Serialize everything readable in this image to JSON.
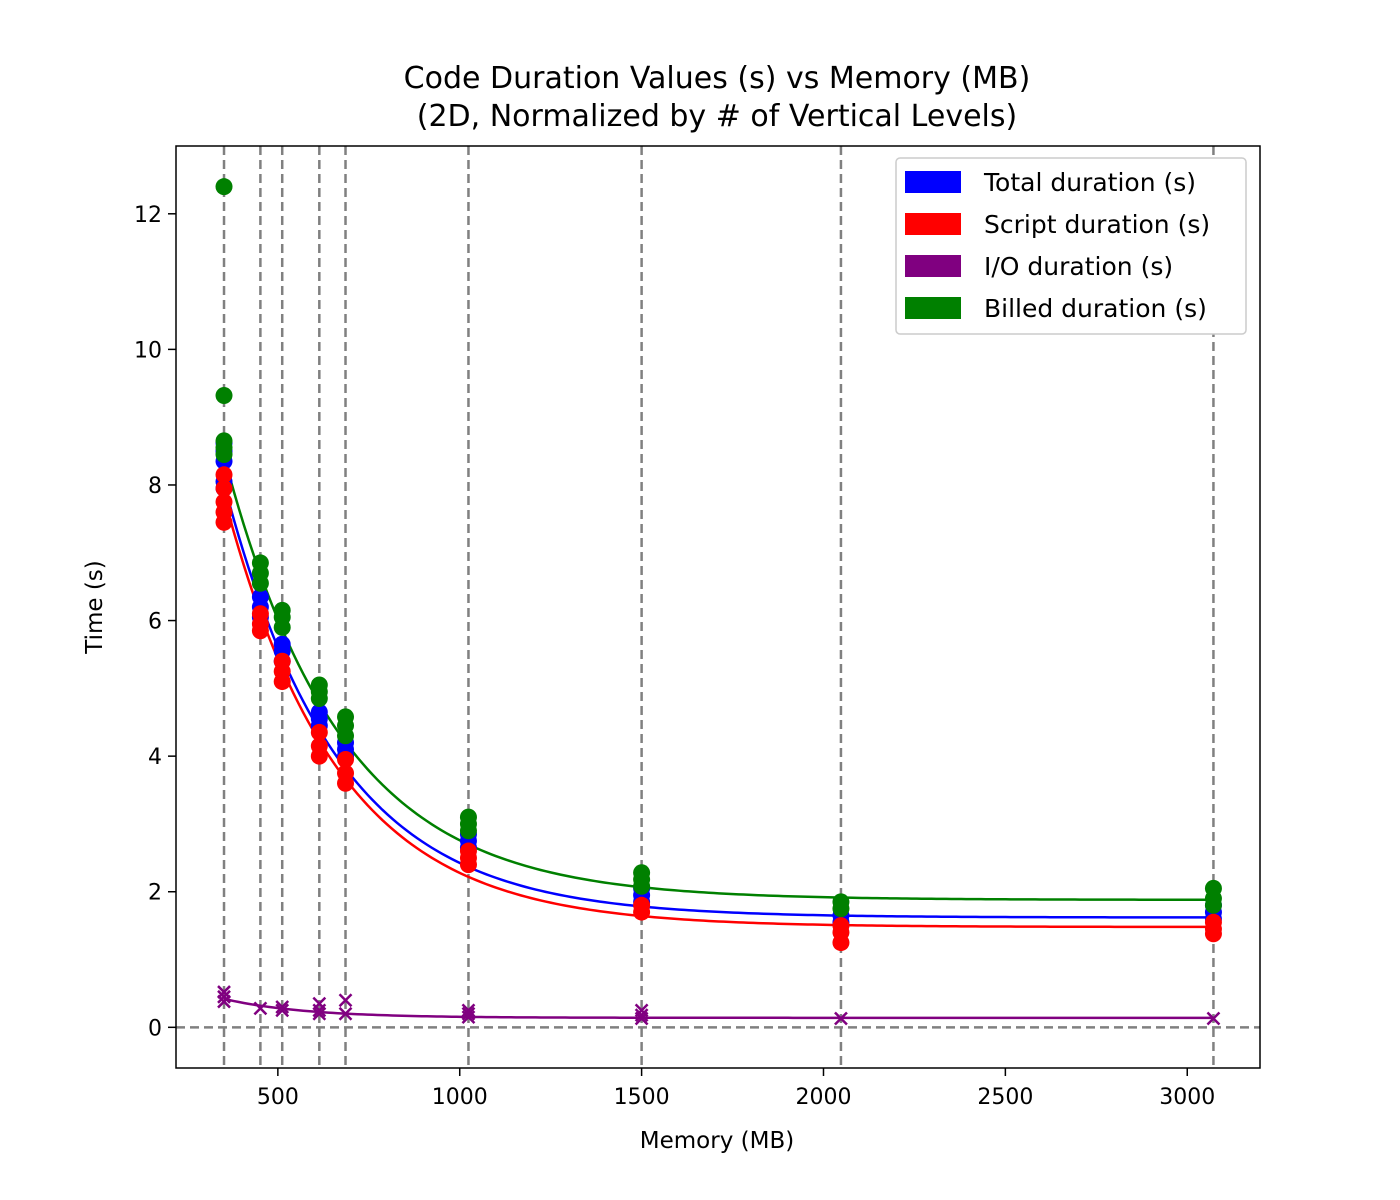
{
  "chart_data": {
    "type": "scatter",
    "title_line1": "Code Duration Values (s) vs Memory (MB)",
    "title_line2": "(2D, Normalized by # of Vertical Levels)",
    "xlabel": "Memory (MB)",
    "ylabel": "Time (s)",
    "xlim": [
      220,
      3200
    ],
    "ylim": [
      -0.6,
      13.0
    ],
    "xticks": [
      500,
      1000,
      1500,
      2000,
      2500,
      3000
    ],
    "yticks": [
      0,
      2,
      4,
      6,
      8,
      10,
      12
    ],
    "grid": false,
    "legend_position": "top-right",
    "reference_lines": {
      "vertical_x": [
        352,
        452,
        512,
        614,
        686,
        1024,
        1500,
        2048,
        3072
      ],
      "horizontal_y": [
        0
      ],
      "color": "#808080",
      "style": "dashed"
    },
    "series": [
      {
        "name": "Total duration (s)",
        "color": "#0000ff",
        "marker": "circle",
        "points": [
          [
            352,
            8.62
          ],
          [
            352,
            8.5
          ],
          [
            352,
            8.35
          ],
          [
            352,
            8.05
          ],
          [
            352,
            7.95
          ],
          [
            452,
            6.35
          ],
          [
            452,
            6.2
          ],
          [
            452,
            6.05
          ],
          [
            512,
            5.65
          ],
          [
            512,
            5.55
          ],
          [
            512,
            5.4
          ],
          [
            614,
            4.65
          ],
          [
            614,
            4.55
          ],
          [
            614,
            4.45
          ],
          [
            686,
            4.2
          ],
          [
            686,
            4.1
          ],
          [
            686,
            4.0
          ],
          [
            1024,
            2.85
          ],
          [
            1024,
            2.75
          ],
          [
            1024,
            2.65
          ],
          [
            1500,
            2.05
          ],
          [
            1500,
            1.95
          ],
          [
            1500,
            1.85
          ],
          [
            2048,
            1.65
          ],
          [
            2048,
            1.55
          ],
          [
            3072,
            1.8
          ],
          [
            3072,
            1.7
          ],
          [
            3072,
            1.6
          ]
        ],
        "fit_curve": {
          "model": "a*exp(-b*(x-c))+d",
          "a": 6.4,
          "b": 0.0032,
          "c": 352,
          "d": 1.62
        }
      },
      {
        "name": "Script duration (s)",
        "color": "#ff0000",
        "marker": "circle",
        "points": [
          [
            352,
            8.15
          ],
          [
            352,
            7.95
          ],
          [
            352,
            7.75
          ],
          [
            352,
            7.6
          ],
          [
            352,
            7.45
          ],
          [
            452,
            6.1
          ],
          [
            452,
            5.95
          ],
          [
            452,
            5.85
          ],
          [
            512,
            5.4
          ],
          [
            512,
            5.25
          ],
          [
            512,
            5.1
          ],
          [
            614,
            4.35
          ],
          [
            614,
            4.15
          ],
          [
            614,
            4.0
          ],
          [
            686,
            3.95
          ],
          [
            686,
            3.75
          ],
          [
            686,
            3.6
          ],
          [
            1024,
            2.6
          ],
          [
            1024,
            2.5
          ],
          [
            1024,
            2.4
          ],
          [
            1500,
            1.8
          ],
          [
            1500,
            1.7
          ],
          [
            2048,
            1.5
          ],
          [
            2048,
            1.4
          ],
          [
            2048,
            1.25
          ],
          [
            3072,
            1.55
          ],
          [
            3072,
            1.45
          ],
          [
            3072,
            1.38
          ]
        ],
        "fit_curve": {
          "model": "a*exp(-b*(x-c))+d",
          "a": 6.35,
          "b": 0.0032,
          "c": 352,
          "d": 1.48
        }
      },
      {
        "name": "I/O duration (s)",
        "color": "#800080",
        "marker": "x",
        "points": [
          [
            352,
            0.52
          ],
          [
            352,
            0.45
          ],
          [
            352,
            0.38
          ],
          [
            452,
            0.28
          ],
          [
            512,
            0.3
          ],
          [
            512,
            0.25
          ],
          [
            614,
            0.35
          ],
          [
            614,
            0.25
          ],
          [
            614,
            0.2
          ],
          [
            686,
            0.4
          ],
          [
            686,
            0.2
          ],
          [
            1024,
            0.25
          ],
          [
            1024,
            0.2
          ],
          [
            1024,
            0.15
          ],
          [
            1500,
            0.25
          ],
          [
            1500,
            0.18
          ],
          [
            1500,
            0.13
          ],
          [
            2048,
            0.13
          ],
          [
            3072,
            0.13
          ]
        ],
        "fit_curve": {
          "model": "a*exp(-b*(x-c))+d",
          "a": 0.28,
          "b": 0.0045,
          "c": 352,
          "d": 0.14
        }
      },
      {
        "name": "Billed duration (s)",
        "color": "#008000",
        "marker": "circle",
        "points": [
          [
            352,
            12.4
          ],
          [
            352,
            9.32
          ],
          [
            352,
            8.65
          ],
          [
            352,
            8.55
          ],
          [
            352,
            8.45
          ],
          [
            452,
            6.85
          ],
          [
            452,
            6.7
          ],
          [
            452,
            6.55
          ],
          [
            512,
            6.15
          ],
          [
            512,
            6.05
          ],
          [
            512,
            5.9
          ],
          [
            614,
            5.05
          ],
          [
            614,
            4.95
          ],
          [
            614,
            4.85
          ],
          [
            686,
            4.58
          ],
          [
            686,
            4.45
          ],
          [
            686,
            4.3
          ],
          [
            1024,
            3.1
          ],
          [
            1024,
            3.0
          ],
          [
            1024,
            2.9
          ],
          [
            1500,
            2.28
          ],
          [
            1500,
            2.18
          ],
          [
            1500,
            2.08
          ],
          [
            2048,
            1.85
          ],
          [
            2048,
            1.75
          ],
          [
            3072,
            2.05
          ],
          [
            3072,
            1.9
          ],
          [
            3072,
            1.8
          ]
        ],
        "fit_curve": {
          "model": "a*exp(-b*(x-c))+d",
          "a": 6.55,
          "b": 0.0031,
          "c": 352,
          "d": 1.88
        }
      }
    ]
  }
}
